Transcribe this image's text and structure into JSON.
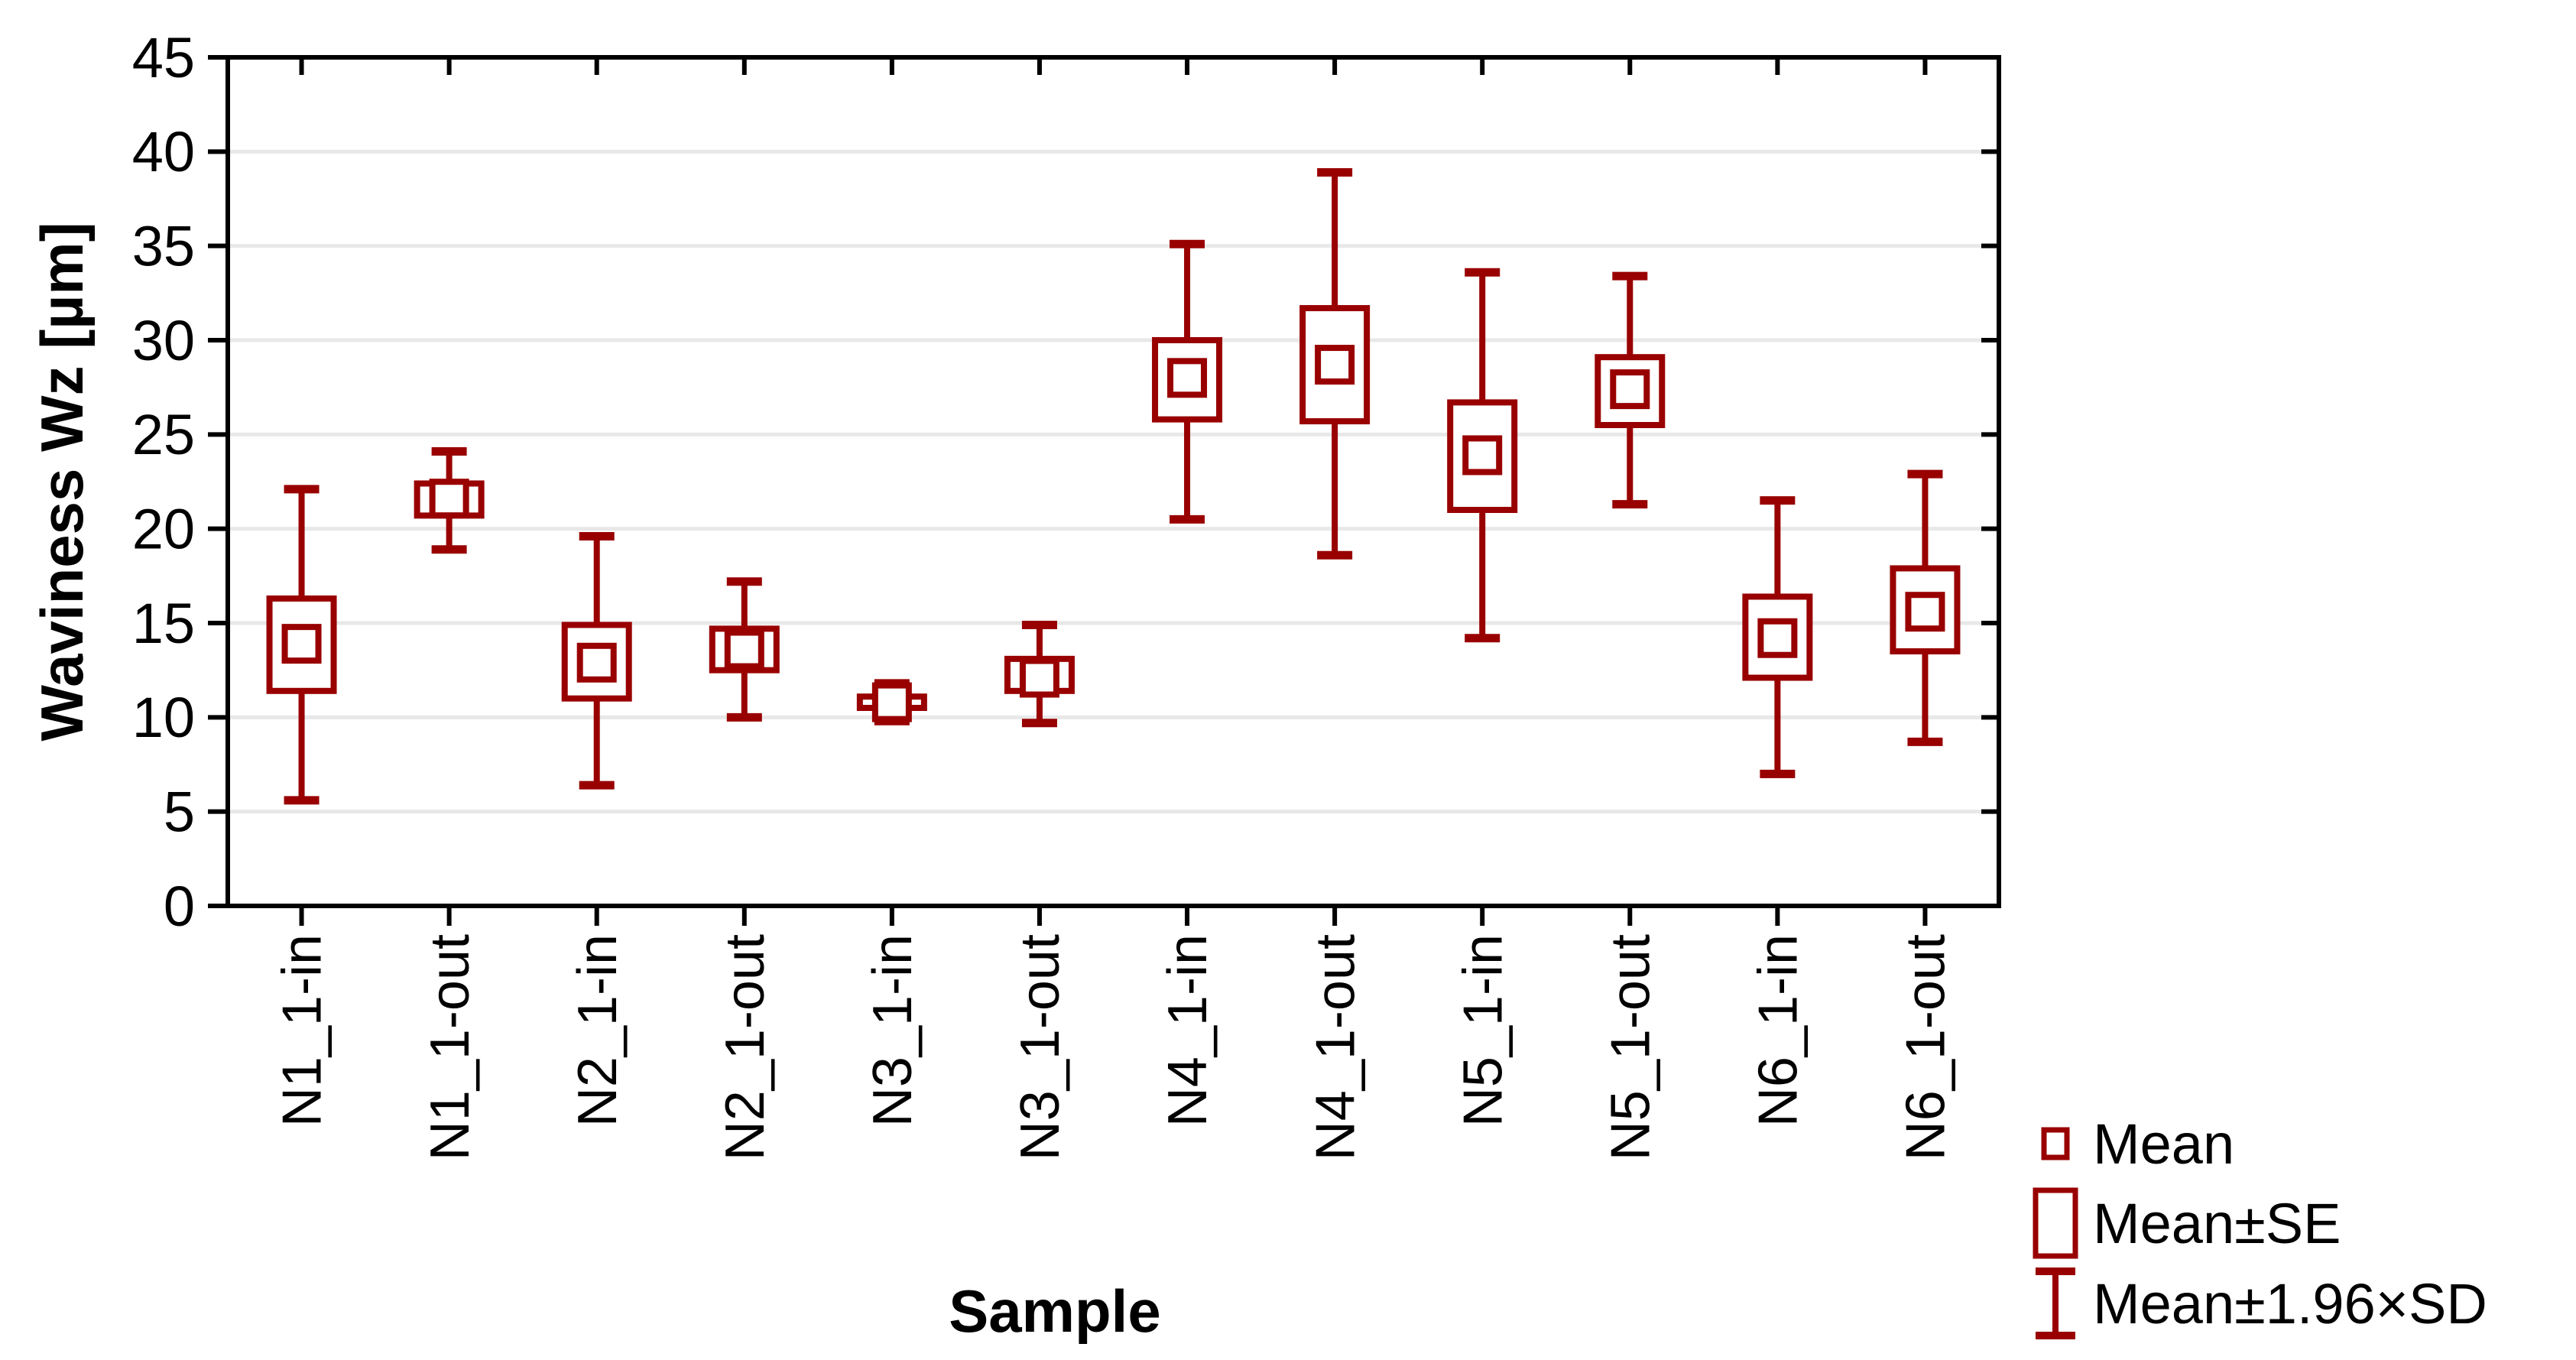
{
  "chart_data": {
    "type": "box-whisker-mean",
    "title": "",
    "xlabel": "Sample",
    "ylabel": "Waviness Wz [µm]",
    "ylim": [
      0,
      45
    ],
    "ytick_step": 5,
    "yticks": [
      0,
      5,
      10,
      15,
      20,
      25,
      30,
      35,
      40,
      45
    ],
    "grid": "horizontal",
    "categories": [
      "N1_1-in",
      "N1_1-out",
      "N2_1-in",
      "N2_1-out",
      "N3_1-in",
      "N3_1-out",
      "N4_1-in",
      "N4_1-out",
      "N5_1-in",
      "N5_1-out",
      "N6_1-in",
      "N6_1-out"
    ],
    "series": [
      {
        "name": "Mean",
        "values": [
          13.9,
          21.6,
          12.9,
          13.6,
          10.8,
          12.1,
          28.0,
          28.7,
          23.9,
          27.4,
          14.2,
          15.6
        ]
      },
      {
        "name": "Mean±SE",
        "low": [
          11.4,
          20.7,
          11.0,
          12.5,
          10.5,
          11.4,
          25.8,
          25.7,
          21.0,
          25.5,
          12.1,
          13.5
        ],
        "high": [
          16.3,
          22.4,
          14.9,
          14.7,
          11.1,
          13.1,
          30.0,
          31.7,
          26.7,
          29.1,
          16.4,
          17.9
        ]
      },
      {
        "name": "Mean±1.96×SD",
        "low": [
          5.6,
          18.9,
          6.4,
          10.0,
          9.8,
          9.7,
          20.5,
          18.6,
          14.2,
          21.3,
          7.0,
          8.7
        ],
        "high": [
          22.1,
          24.1,
          19.6,
          17.2,
          11.8,
          14.9,
          35.1,
          38.9,
          33.6,
          33.4,
          21.5,
          22.9
        ]
      }
    ],
    "legend": {
      "position": "bottom-right",
      "entries": [
        {
          "label": "Mean",
          "marker": "small-square"
        },
        {
          "label": "Mean±SE",
          "marker": "box"
        },
        {
          "label": "Mean±1.96×SD",
          "marker": "whisker"
        }
      ]
    },
    "colors": {
      "series": "#990000",
      "grid": "#E8E8E8",
      "frame": "#000000",
      "text": "#000000",
      "background": "#FFFFFF"
    }
  }
}
